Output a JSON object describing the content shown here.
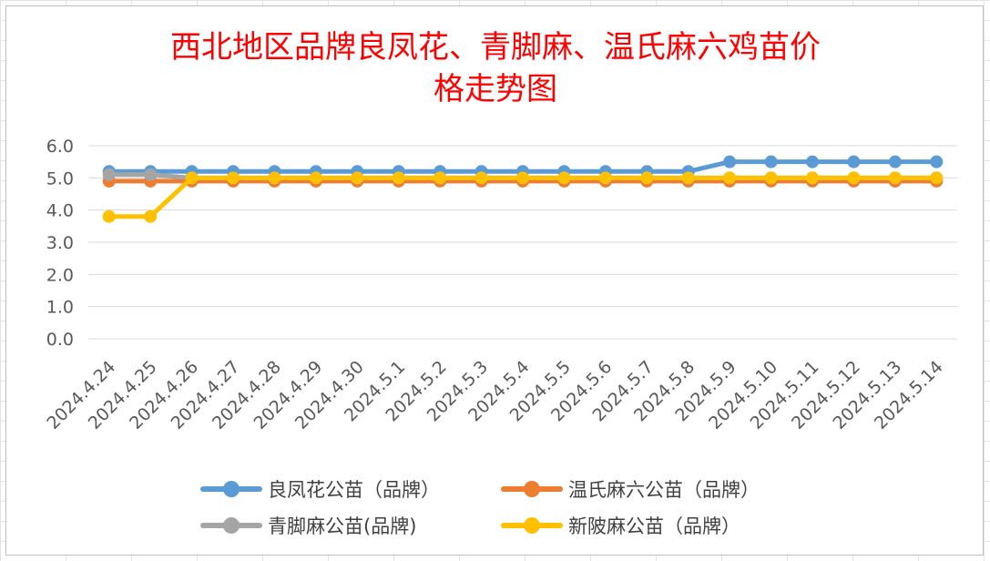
{
  "chart_data": {
    "type": "line",
    "title_lines": [
      "西北地区品牌良凤花、青脚麻、温氏麻六鸡苗价",
      "格走势图"
    ],
    "categories": [
      "2024.4.24",
      "2024.4.25",
      "2024.4.26",
      "2024.4.27",
      "2024.4.28",
      "2024.4.29",
      "2024.4.30",
      "2024.5.1",
      "2024.5.2",
      "2024.5.3",
      "2024.5.4",
      "2024.5.5",
      "2024.5.6",
      "2024.5.7",
      "2024.5.8",
      "2024.5.9",
      "2024.5.10",
      "2024.5.11",
      "2024.5.12",
      "2024.5.13",
      "2024.5.14"
    ],
    "ylim": [
      0,
      6
    ],
    "yticks": [
      "0.0",
      "1.0",
      "2.0",
      "3.0",
      "4.0",
      "5.0",
      "6.0"
    ],
    "grid": true,
    "legend_position": "bottom",
    "series": [
      {
        "name": "良凤花公苗（品牌）",
        "color": "#5b9bd5",
        "values": [
          5.2,
          5.2,
          5.2,
          5.2,
          5.2,
          5.2,
          5.2,
          5.2,
          5.2,
          5.2,
          5.2,
          5.2,
          5.2,
          5.2,
          5.2,
          5.5,
          5.5,
          5.5,
          5.5,
          5.5,
          5.5
        ]
      },
      {
        "name": "温氏麻六公苗（品牌）",
        "color": "#ed7d31",
        "values": [
          4.9,
          4.9,
          4.9,
          4.9,
          4.9,
          4.9,
          4.9,
          4.9,
          4.9,
          4.9,
          4.9,
          4.9,
          4.9,
          4.9,
          4.9,
          4.9,
          4.9,
          4.9,
          4.9,
          4.9,
          4.9
        ]
      },
      {
        "name": "青脚麻公苗(品牌)",
        "color": "#a5a5a5",
        "values": [
          5.1,
          5.1,
          5.0,
          5.0,
          5.0,
          5.0,
          5.0,
          5.0,
          5.0,
          5.0,
          5.0,
          5.0,
          5.0,
          5.0,
          5.0,
          5.0,
          5.0,
          5.0,
          5.0,
          5.0,
          5.0
        ]
      },
      {
        "name": "新陂麻公苗（品牌）",
        "color": "#ffc000",
        "values": [
          3.8,
          3.8,
          5.0,
          5.0,
          5.0,
          5.0,
          5.0,
          5.0,
          5.0,
          5.0,
          5.0,
          5.0,
          5.0,
          5.0,
          5.0,
          5.0,
          5.0,
          5.0,
          5.0,
          5.0,
          5.0
        ]
      }
    ]
  }
}
